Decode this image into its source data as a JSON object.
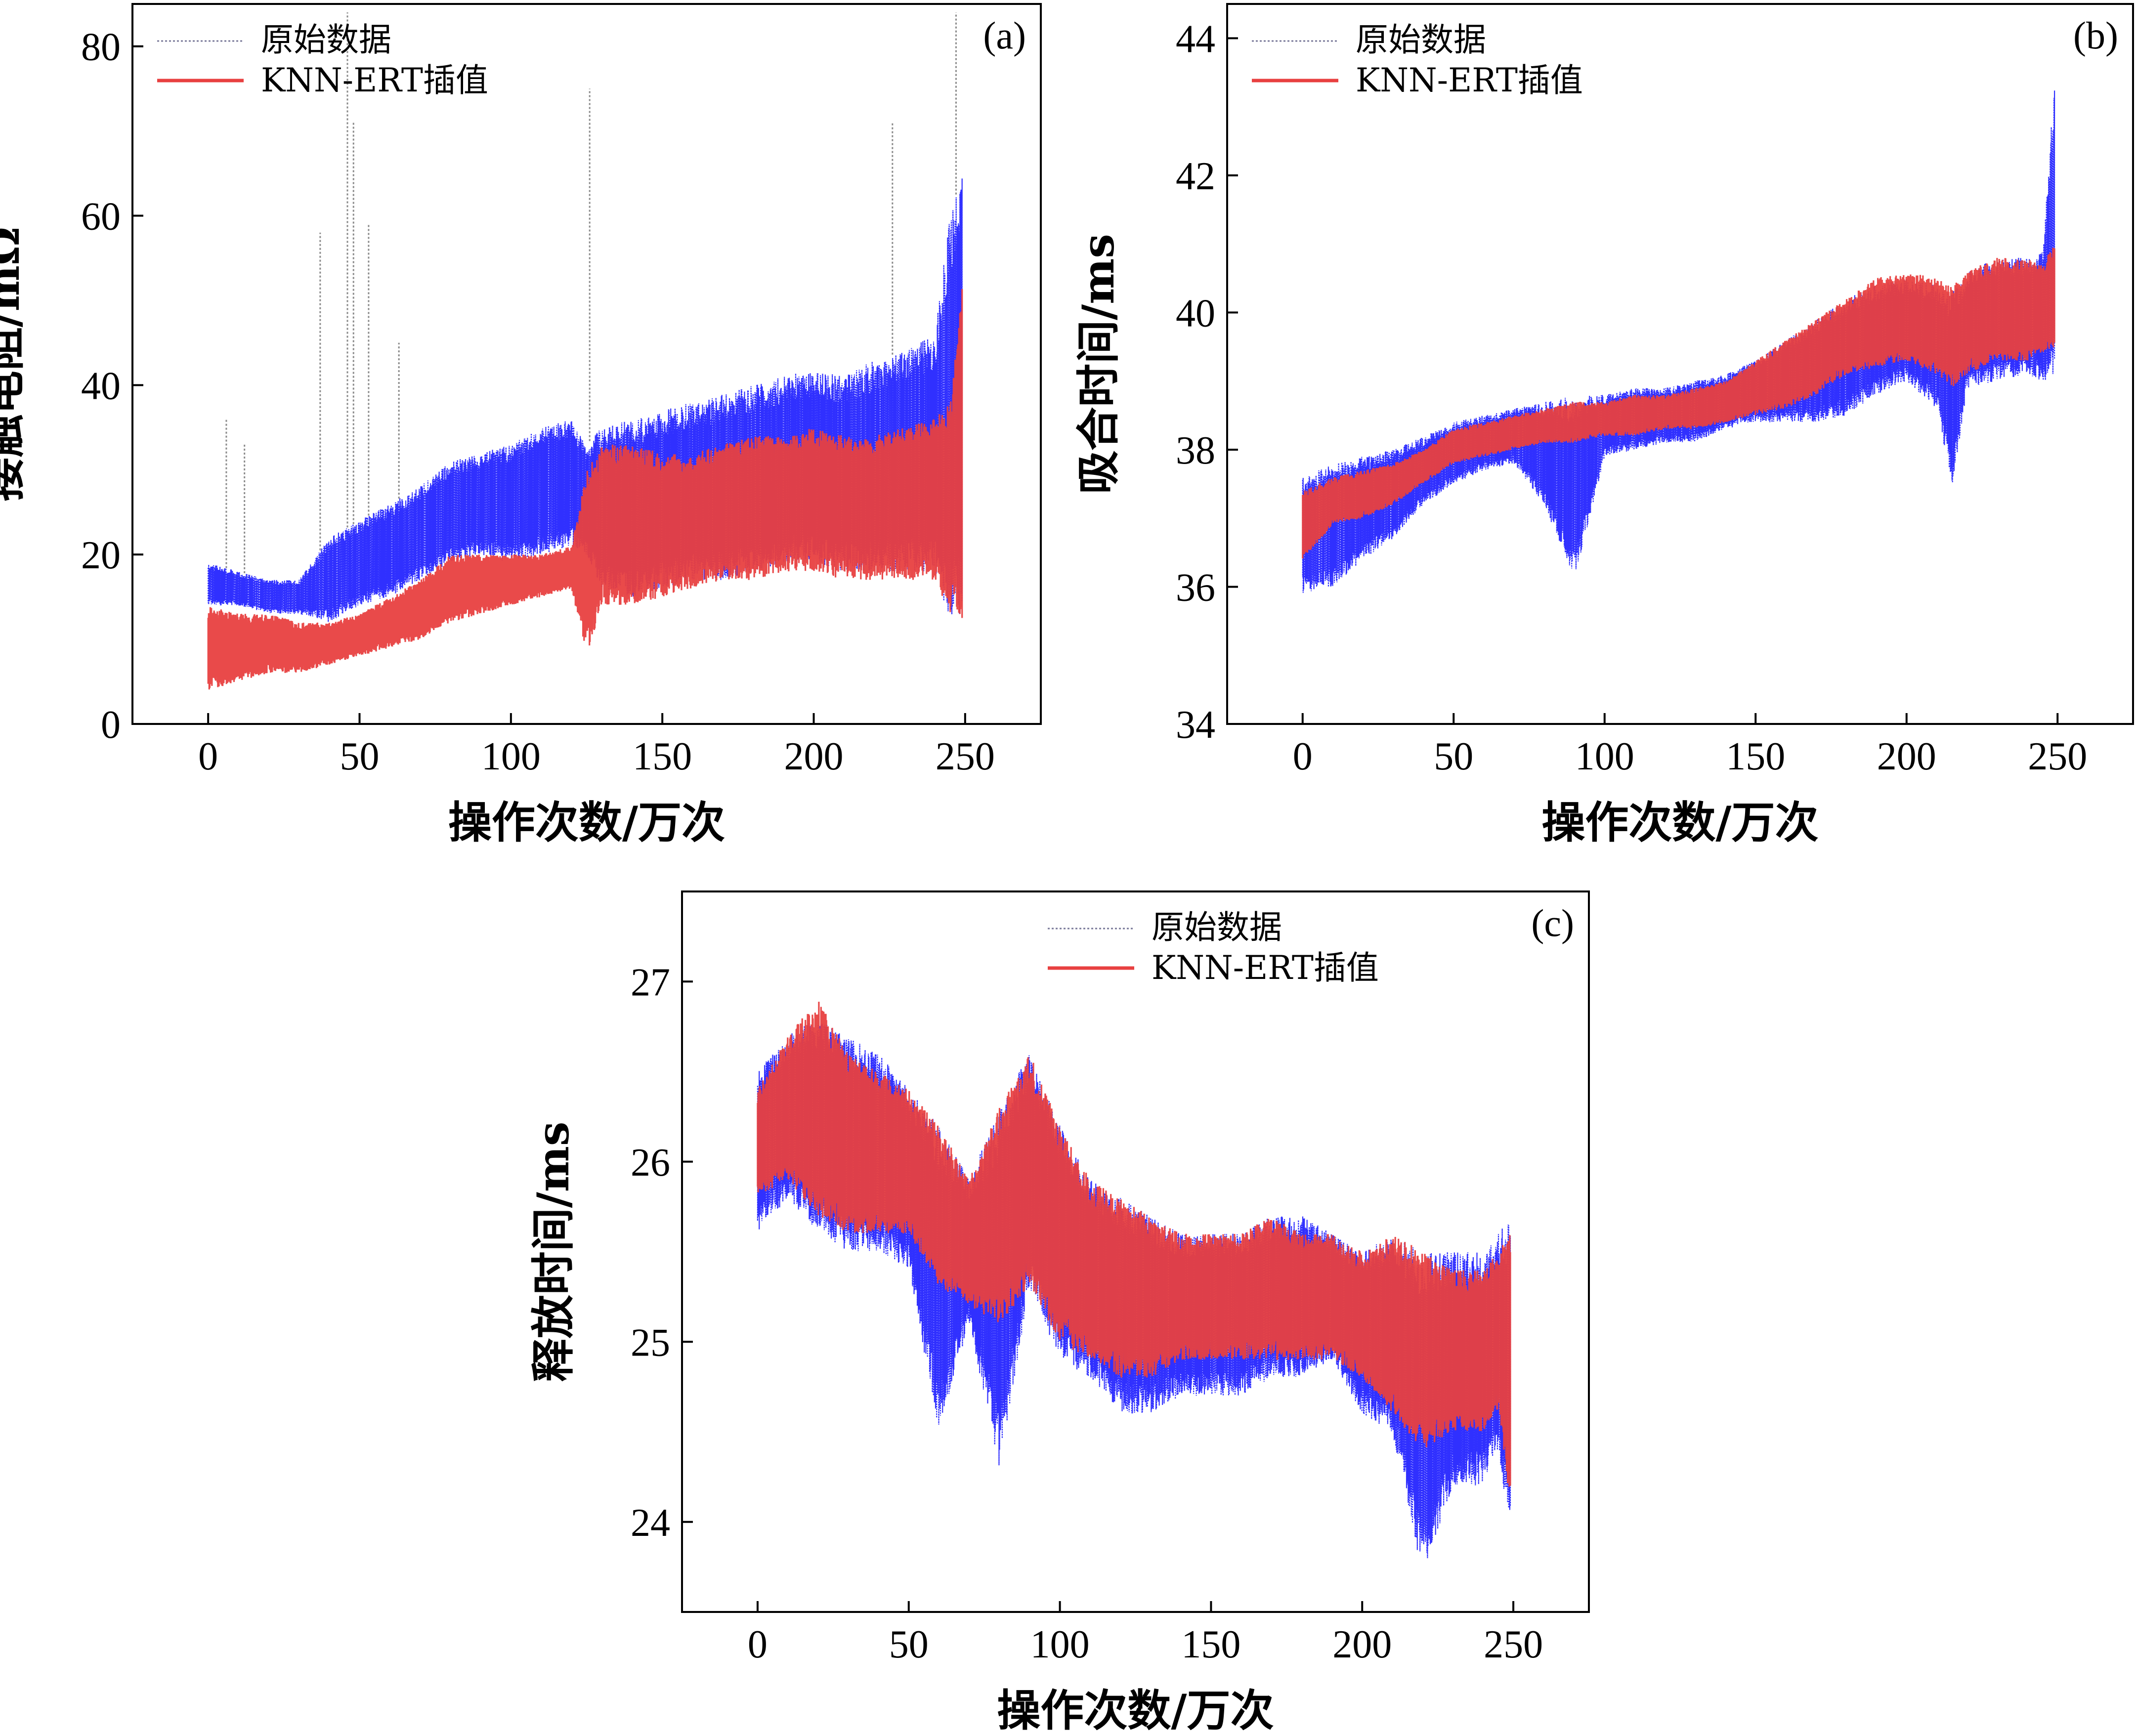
{
  "figure": {
    "colors": {
      "original": "#1a1aff",
      "interpolated": "#e84040",
      "axis": "#000000"
    }
  },
  "chart_data": [
    {
      "panel": "(a)",
      "type": "line",
      "xlabel": "操作次数/万次",
      "ylabel": "接触电阻/mΩ",
      "xlim": [
        -25,
        275
      ],
      "ylim": [
        0,
        85
      ],
      "xticks": [
        0,
        50,
        100,
        150,
        200,
        250
      ],
      "yticks": [
        0,
        20,
        40,
        60,
        80
      ],
      "legend": {
        "placement": "top-left",
        "entries": [
          "原始数据",
          "KNN-ERT插值"
        ]
      },
      "x": [
        0,
        10,
        20,
        30,
        40,
        50,
        60,
        70,
        80,
        90,
        100,
        110,
        120,
        125,
        130,
        140,
        150,
        160,
        170,
        180,
        190,
        200,
        210,
        220,
        230,
        240,
        245,
        249
      ],
      "series": [
        {
          "name": "原始数据",
          "style": "dotted",
          "upper": [
            19,
            18,
            17,
            17,
            22,
            24,
            26,
            28,
            31,
            32,
            33,
            35,
            36,
            33,
            35,
            36,
            37,
            38,
            39,
            40,
            41,
            42,
            41,
            43,
            44,
            46,
            60,
            65
          ],
          "lower": [
            14,
            14,
            13,
            13,
            12,
            14,
            15,
            17,
            19,
            20,
            19,
            20,
            21,
            20,
            16,
            15,
            16,
            17,
            17,
            18,
            19,
            19,
            18,
            18,
            18,
            18,
            12,
            12
          ]
        },
        {
          "name": "KNN-ERT插值",
          "style": "solid",
          "upper": [
            14,
            13,
            13,
            12,
            12,
            13,
            15,
            17,
            20,
            20,
            20,
            20,
            21,
            30,
            33,
            33,
            32,
            32,
            33,
            34,
            34,
            35,
            34,
            34,
            35,
            36,
            38,
            52
          ],
          "lower": [
            4,
            5,
            6,
            6,
            7,
            8,
            9,
            10,
            12,
            13,
            14,
            15,
            16,
            8,
            14,
            14,
            15,
            16,
            17,
            17,
            18,
            18,
            17,
            17,
            17,
            17,
            13,
            12
          ]
        }
      ],
      "spikes": [
        {
          "x": 6,
          "y": 36
        },
        {
          "x": 12,
          "y": 33
        },
        {
          "x": 37,
          "y": 58
        },
        {
          "x": 46,
          "y": 84
        },
        {
          "x": 48,
          "y": 71
        },
        {
          "x": 53,
          "y": 59
        },
        {
          "x": 63,
          "y": 45
        },
        {
          "x": 126,
          "y": 75
        },
        {
          "x": 226,
          "y": 71
        },
        {
          "x": 247,
          "y": 84
        }
      ]
    },
    {
      "panel": "(b)",
      "type": "line",
      "xlabel": "操作次数/万次",
      "ylabel": "吸合时间/ms",
      "xlim": [
        -25,
        275
      ],
      "ylim": [
        34,
        44.5
      ],
      "xticks": [
        0,
        50,
        100,
        150,
        200,
        250
      ],
      "yticks": [
        34,
        36,
        38,
        40,
        42,
        44
      ],
      "legend": {
        "placement": "top-left",
        "entries": [
          "原始数据",
          "KNN-ERT插值"
        ]
      },
      "x": [
        0,
        10,
        20,
        30,
        40,
        50,
        60,
        70,
        80,
        90,
        100,
        110,
        120,
        130,
        140,
        150,
        160,
        170,
        180,
        190,
        200,
        210,
        215,
        220,
        230,
        240,
        245,
        249
      ],
      "series": [
        {
          "name": "原始数据",
          "style": "dotted",
          "upper": [
            37.6,
            37.8,
            37.9,
            38.0,
            38.2,
            38.4,
            38.5,
            38.6,
            38.7,
            38.8,
            38.8,
            38.9,
            38.9,
            39.0,
            39.1,
            39.3,
            39.6,
            39.9,
            40.2,
            40.4,
            40.5,
            40.4,
            40.3,
            40.6,
            40.8,
            40.8,
            40.9,
            43.4
          ],
          "lower": [
            35.9,
            36.0,
            36.4,
            36.7,
            37.2,
            37.5,
            37.7,
            37.8,
            37.2,
            36.1,
            37.9,
            38.0,
            38.1,
            38.1,
            38.3,
            38.4,
            38.4,
            38.4,
            38.5,
            38.8,
            39.0,
            38.6,
            37.4,
            38.9,
            39.0,
            39.1,
            39.0,
            39.0
          ]
        },
        {
          "name": "KNN-ERT插值",
          "style": "solid",
          "upper": [
            37.4,
            37.6,
            37.7,
            37.8,
            38.0,
            38.3,
            38.4,
            38.5,
            38.6,
            38.7,
            38.7,
            38.8,
            38.8,
            38.9,
            39.0,
            39.3,
            39.6,
            39.9,
            40.2,
            40.5,
            40.6,
            40.5,
            40.4,
            40.6,
            40.8,
            40.8,
            40.7,
            41.0
          ],
          "lower": [
            36.4,
            36.9,
            37.0,
            37.2,
            37.5,
            37.8,
            37.9,
            38.0,
            38.1,
            38.1,
            38.2,
            38.2,
            38.3,
            38.3,
            38.4,
            38.5,
            38.6,
            38.8,
            39.1,
            39.2,
            39.3,
            39.1,
            38.9,
            39.1,
            39.3,
            39.3,
            39.4,
            39.5
          ]
        }
      ],
      "spikes": []
    },
    {
      "panel": "(c)",
      "type": "line",
      "xlabel": "操作次数/万次",
      "ylabel": "释放时间/ms",
      "xlim": [
        -25,
        275
      ],
      "ylim": [
        23.5,
        27.5
      ],
      "xticks": [
        0,
        50,
        100,
        150,
        200,
        250
      ],
      "yticks": [
        24,
        25,
        26,
        27
      ],
      "legend": {
        "placement": "top-center",
        "entries": [
          "原始数据",
          "KNN-ERT插值"
        ]
      },
      "x": [
        0,
        10,
        20,
        30,
        40,
        50,
        60,
        70,
        80,
        90,
        100,
        110,
        120,
        130,
        140,
        150,
        160,
        170,
        180,
        190,
        200,
        210,
        220,
        230,
        240,
        245,
        249
      ],
      "series": [
        {
          "name": "原始数据",
          "style": "dotted",
          "upper": [
            26.5,
            26.7,
            26.8,
            26.7,
            26.6,
            26.4,
            26.2,
            25.9,
            26.3,
            26.6,
            26.2,
            25.9,
            25.8,
            25.7,
            25.6,
            25.6,
            25.6,
            25.7,
            25.7,
            25.6,
            25.5,
            25.6,
            25.5,
            25.5,
            25.5,
            25.6,
            25.7
          ],
          "lower": [
            25.6,
            25.8,
            25.6,
            25.5,
            25.5,
            25.4,
            24.5,
            25.1,
            24.3,
            25.3,
            24.9,
            24.8,
            24.6,
            24.6,
            24.7,
            24.7,
            24.7,
            24.8,
            24.8,
            24.9,
            24.6,
            24.5,
            23.7,
            24.2,
            24.2,
            24.4,
            23.9
          ]
        },
        {
          "name": "KNN-ERT插值",
          "style": "solid",
          "upper": [
            26.4,
            26.7,
            26.9,
            26.6,
            26.5,
            26.4,
            26.2,
            25.9,
            26.3,
            26.6,
            26.2,
            25.9,
            25.8,
            25.7,
            25.6,
            25.6,
            25.6,
            25.7,
            25.6,
            25.6,
            25.5,
            25.6,
            25.5,
            25.4,
            25.4,
            25.5,
            25.6
          ],
          "lower": [
            25.8,
            25.9,
            25.7,
            25.6,
            25.6,
            25.6,
            25.3,
            25.2,
            25.1,
            25.3,
            25.0,
            24.9,
            24.8,
            24.8,
            24.9,
            24.9,
            24.9,
            24.9,
            24.9,
            24.9,
            24.8,
            24.6,
            24.4,
            24.5,
            24.5,
            24.6,
            24.1
          ]
        }
      ],
      "spikes": []
    }
  ]
}
